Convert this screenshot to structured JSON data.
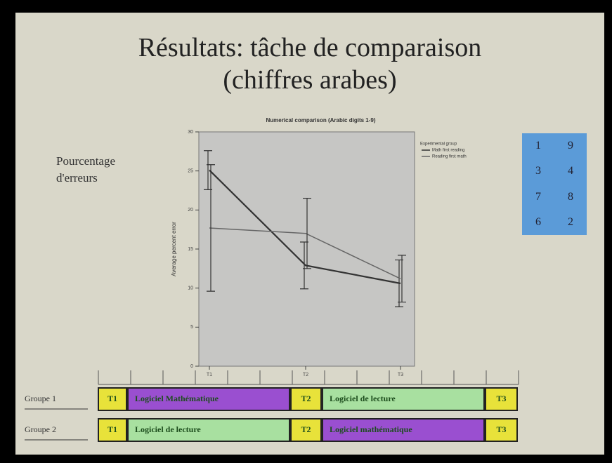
{
  "slide": {
    "title_line1": "Résultats: tâche de comparaison",
    "title_line2": "(chiffres arabes)",
    "side_label": "Pourcentage d'erreurs",
    "digits": [
      "1",
      "9",
      "3",
      "4",
      "7",
      "8",
      "6",
      "2"
    ],
    "groups": [
      {
        "label": "Groupe 1",
        "cells": [
          {
            "text": "T1",
            "color": "#e8e23a"
          },
          {
            "text": "Logiciel Mathématique",
            "color": "#9a4fd0"
          },
          {
            "text": "T2",
            "color": "#e8e23a"
          },
          {
            "text": "Logiciel de lecture",
            "color": "#a8e0a0"
          },
          {
            "text": "T3",
            "color": "#e8e23a"
          }
        ]
      },
      {
        "label": "Groupe 2",
        "cells": [
          {
            "text": "T1",
            "color": "#e8e23a"
          },
          {
            "text": "Logiciel de lecture",
            "color": "#a8e0a0"
          },
          {
            "text": "T2",
            "color": "#e8e23a"
          },
          {
            "text": "Logiciel mathématique",
            "color": "#9a4fd0"
          },
          {
            "text": "T3",
            "color": "#e8e23a"
          }
        ]
      }
    ]
  },
  "chart_data": {
    "type": "line",
    "title": "Numerical comparison (Arabic digits 1-9)",
    "y_label": "Average percent error",
    "legend_title": "Experimental group",
    "categories": [
      "T1",
      "T2",
      "T3"
    ],
    "series": [
      {
        "name": "Math first reading",
        "color": "#333333",
        "values": [
          25.1,
          12.9,
          10.6
        ],
        "errors": [
          2.5,
          3.0,
          3.0
        ]
      },
      {
        "name": "Reading first math",
        "color": "#666666",
        "values": [
          17.7,
          17.0,
          11.2
        ],
        "errors": [
          8.1,
          4.5,
          3.0
        ]
      }
    ],
    "ylim": [
      0,
      30
    ],
    "yticks": [
      0,
      5,
      10,
      15,
      20,
      25,
      30
    ],
    "grid": false,
    "legend": "right"
  }
}
